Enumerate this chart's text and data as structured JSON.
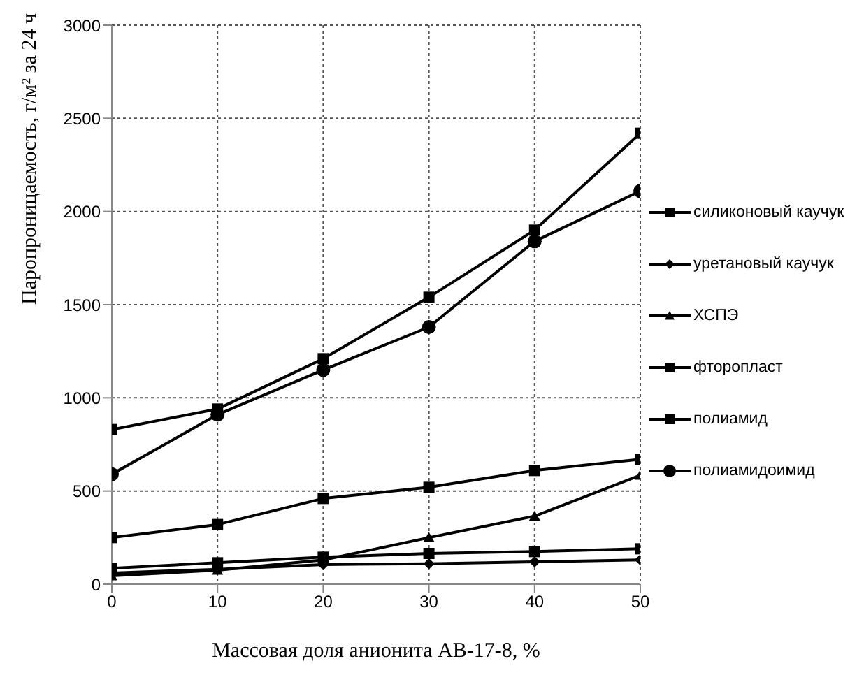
{
  "chart_data": {
    "type": "line",
    "xlabel": "Массовая доля анионита АВ-17-8, %",
    "ylabel": "Паропроницаемость, г/м² за 24 ч",
    "x": [
      0,
      10,
      20,
      30,
      40,
      50
    ],
    "series": [
      {
        "name": "силиконовый каучук",
        "color": "#000000",
        "marker": "square",
        "values": [
          85,
          115,
          145,
          165,
          175,
          190
        ]
      },
      {
        "name": "уретановый каучук",
        "color": "#000000",
        "marker": "diamond",
        "values": [
          60,
          80,
          105,
          110,
          120,
          130
        ]
      },
      {
        "name": "ХСПЭ",
        "color": "#000000",
        "marker": "triangle",
        "values": [
          45,
          75,
          130,
          250,
          365,
          585
        ]
      },
      {
        "name": "фторопласт",
        "color": "#000000",
        "marker": "square",
        "values": [
          250,
          320,
          460,
          520,
          610,
          670
        ]
      },
      {
        "name": "полиамид",
        "color": "#000000",
        "marker": "square",
        "values": [
          830,
          940,
          1210,
          1540,
          1900,
          2420
        ]
      },
      {
        "name": "полиамидоимид",
        "color": "#000000",
        "marker": "circle",
        "values": [
          590,
          910,
          1150,
          1380,
          1840,
          2110
        ]
      }
    ],
    "xlim": [
      0,
      50
    ],
    "xticks": [
      0,
      10,
      20,
      30,
      40,
      50
    ],
    "ylim": [
      0,
      3000
    ],
    "yticks": [
      0,
      500,
      1000,
      1500,
      2000,
      2500,
      3000
    ],
    "grid": true,
    "legend": "right",
    "line_style": "solid"
  }
}
